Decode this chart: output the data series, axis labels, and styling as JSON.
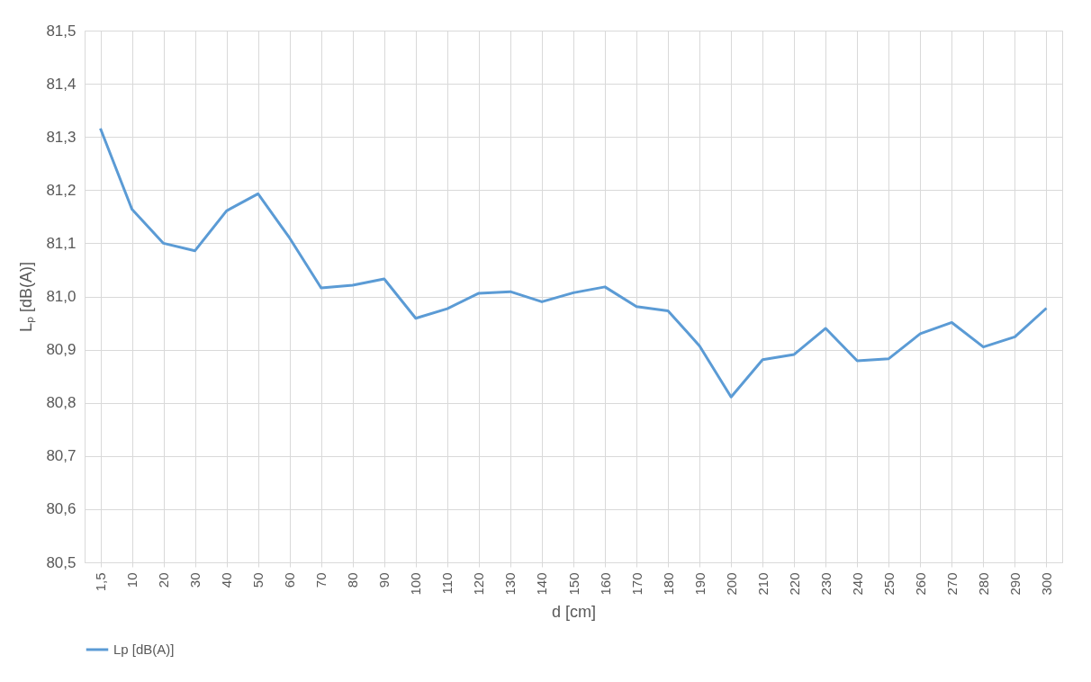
{
  "chart_data": {
    "type": "line",
    "xlabel": "d [cm]",
    "ylabel": "Lₚ [dB(A)]",
    "categories": [
      "1,5",
      "10",
      "20",
      "30",
      "40",
      "50",
      "60",
      "70",
      "80",
      "90",
      "100",
      "110",
      "120",
      "130",
      "140",
      "150",
      "160",
      "170",
      "180",
      "190",
      "200",
      "210",
      "220",
      "230",
      "240",
      "250",
      "260",
      "270",
      "280",
      "290",
      "300"
    ],
    "series": [
      {
        "name": "Lp [dB(A)]",
        "color": "#5b9bd5",
        "values": [
          81.316,
          81.164,
          81.1,
          81.086,
          81.161,
          81.193,
          81.11,
          81.016,
          81.021,
          81.033,
          80.959,
          80.977,
          81.006,
          81.009,
          80.99,
          81.007,
          81.018,
          80.981,
          80.973,
          80.907,
          80.811,
          80.881,
          80.891,
          80.94,
          80.879,
          80.883,
          80.93,
          80.951,
          80.905,
          80.924,
          80.978
        ]
      }
    ],
    "ylim": [
      80.5,
      81.5
    ],
    "yticks": [
      {
        "value": 80.5,
        "label": "80,5"
      },
      {
        "value": 80.6,
        "label": "80,6"
      },
      {
        "value": 80.7,
        "label": "80,7"
      },
      {
        "value": 80.8,
        "label": "80,8"
      },
      {
        "value": 80.9,
        "label": "80,9"
      },
      {
        "value": 81.0,
        "label": "81,0"
      },
      {
        "value": 81.1,
        "label": "81,1"
      },
      {
        "value": 81.2,
        "label": "81,2"
      },
      {
        "value": 81.3,
        "label": "81,3"
      },
      {
        "value": 81.4,
        "label": "81,4"
      },
      {
        "value": 81.5,
        "label": "81,5"
      }
    ],
    "grid": true,
    "legend": "bottom",
    "line_style": "solid",
    "marker": "none"
  }
}
